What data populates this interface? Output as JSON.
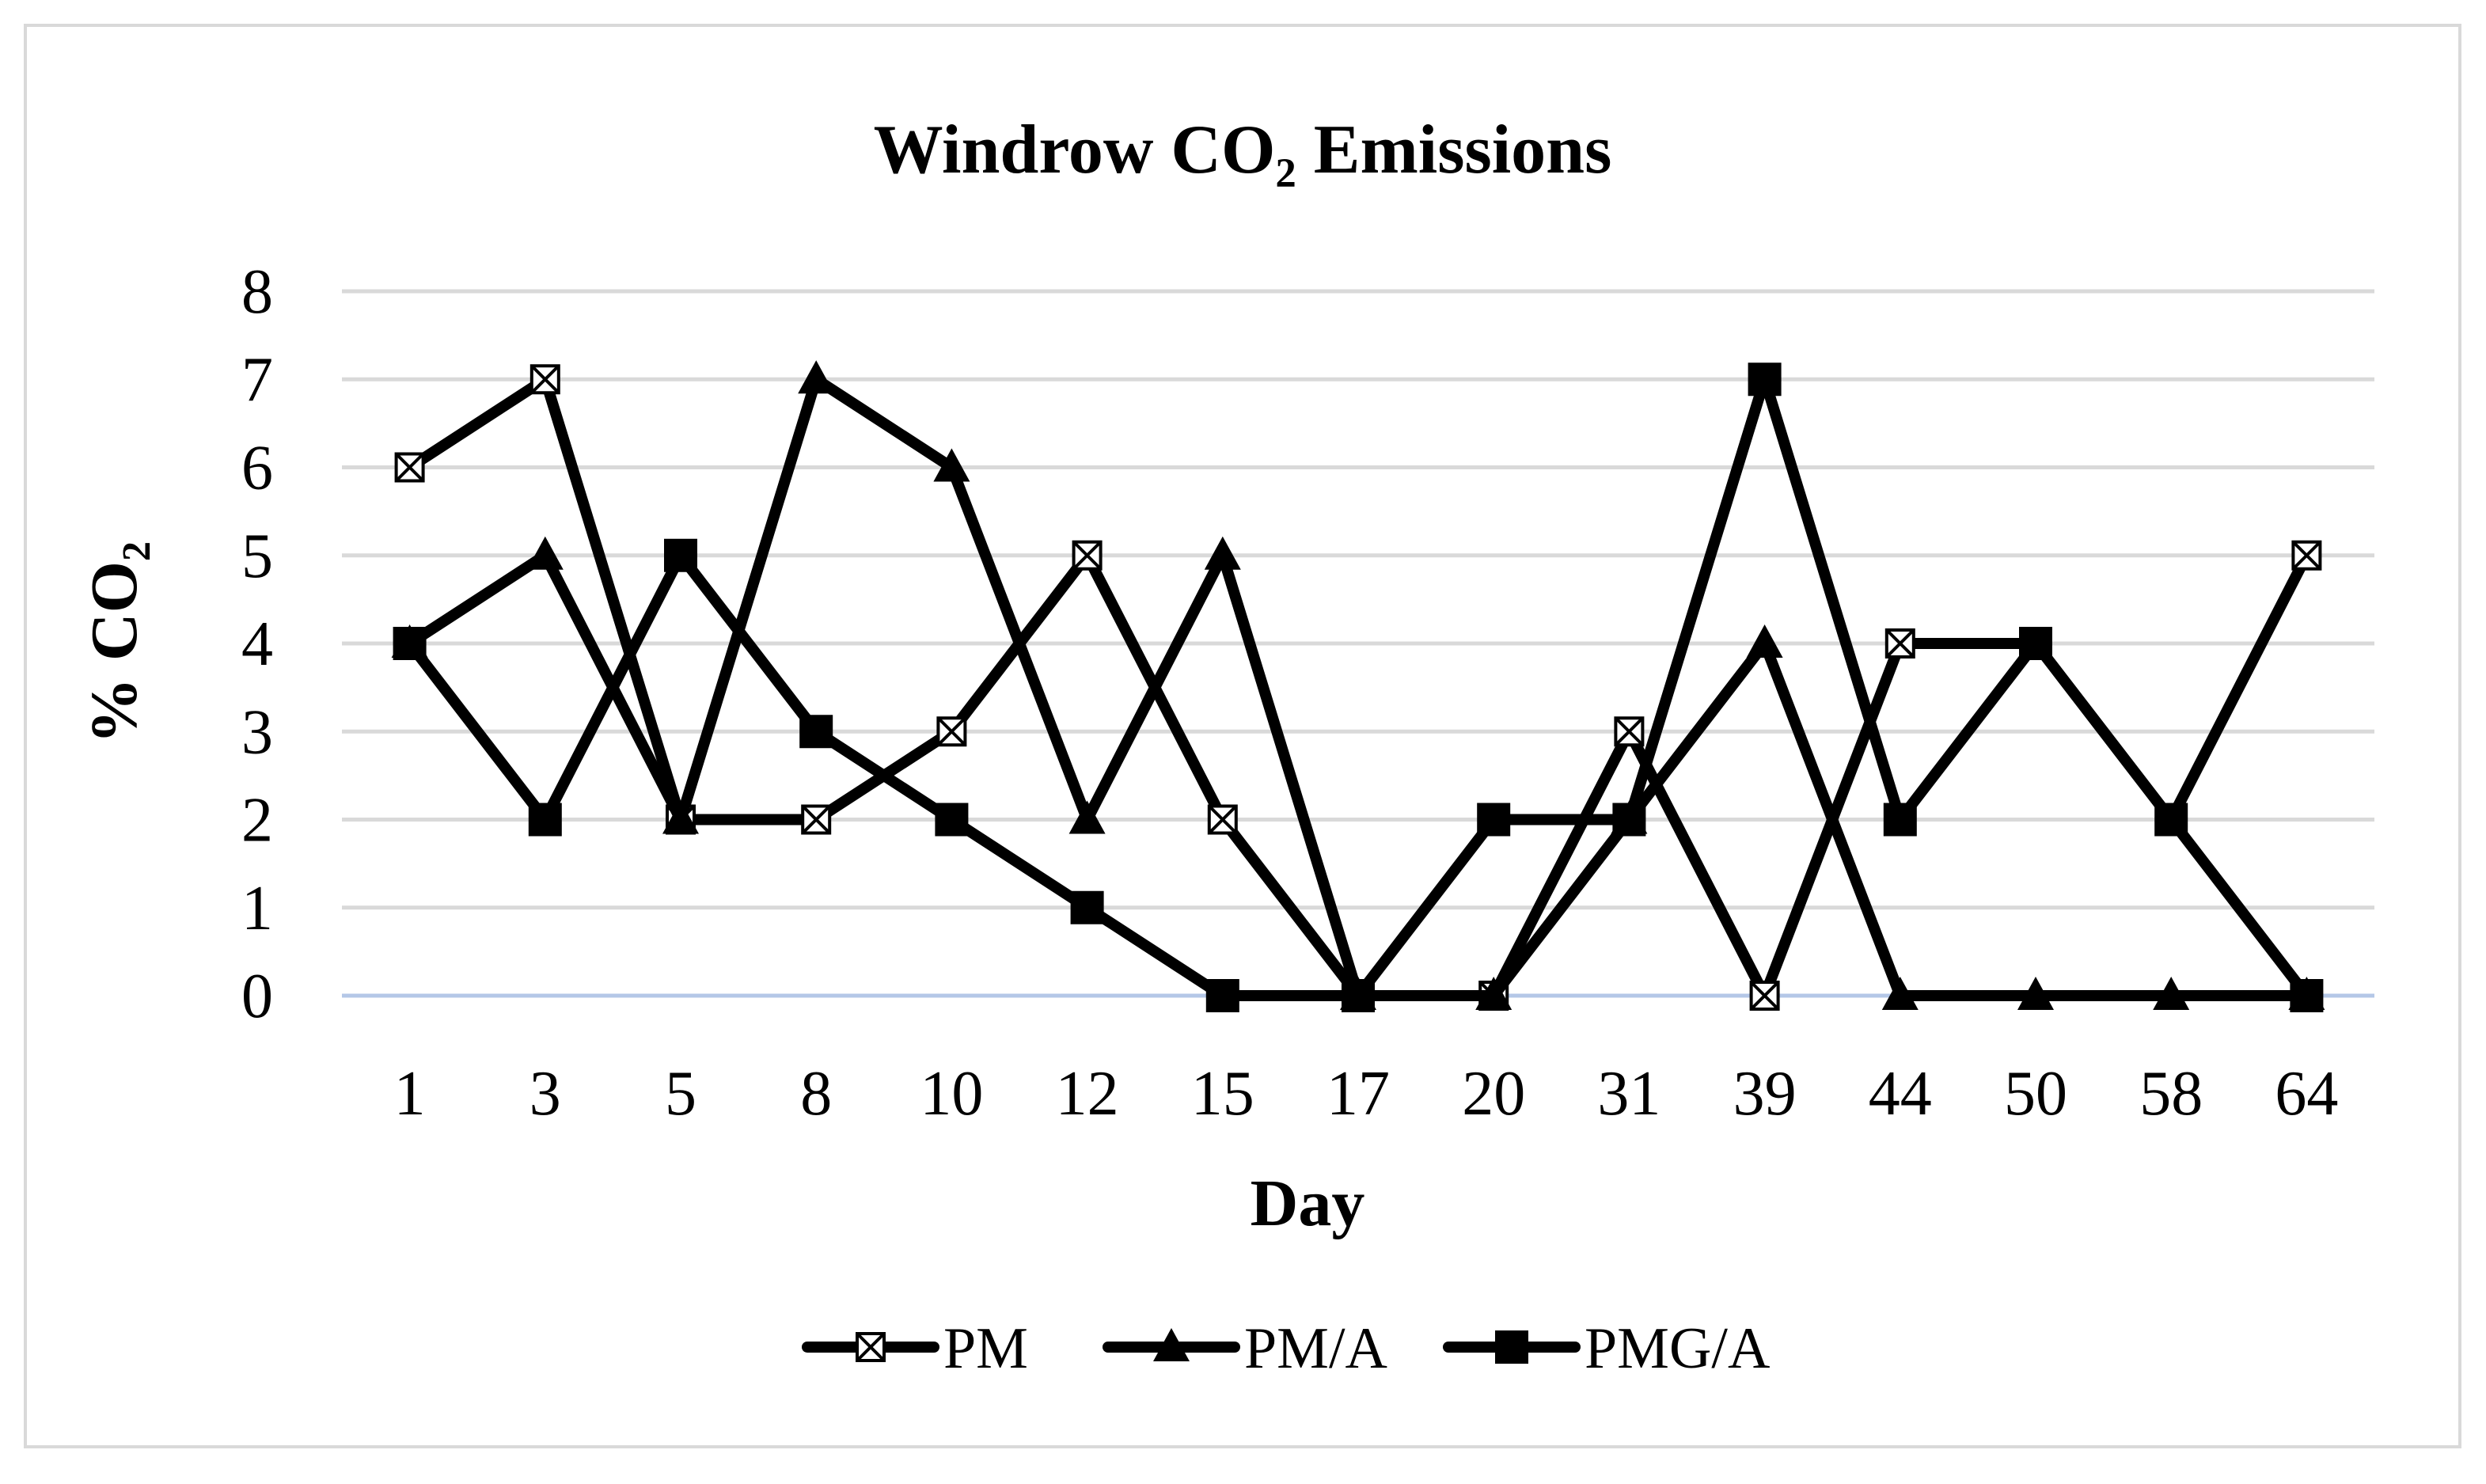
{
  "chart_data": {
    "type": "line",
    "title": "Windrow CO₂ Emissions",
    "xlabel": "Day",
    "ylabel": "% CO₂",
    "ylim": [
      0,
      8
    ],
    "yticks": [
      "0",
      "1",
      "2",
      "3",
      "4",
      "5",
      "6",
      "7",
      "8"
    ],
    "grid": true,
    "legend_position": "bottom",
    "categories": [
      "1",
      "3",
      "5",
      "8",
      "10",
      "12",
      "15",
      "17",
      "20",
      "31",
      "39",
      "44",
      "50",
      "58",
      "64"
    ],
    "series": [
      {
        "name": "PM",
        "marker": "x-square",
        "values": [
          6,
          7,
          2,
          2,
          3,
          5,
          2,
          0,
          0,
          3,
          0,
          4,
          4,
          2,
          5
        ]
      },
      {
        "name": "PM/A",
        "marker": "triangle",
        "values": [
          4,
          5,
          2,
          7,
          6,
          2,
          5,
          0,
          0,
          2,
          4,
          0,
          0,
          0,
          0
        ]
      },
      {
        "name": "PMG/A",
        "marker": "square",
        "values": [
          4,
          2,
          5,
          3,
          2,
          1,
          0,
          0,
          2,
          2,
          7,
          2,
          4,
          2,
          0
        ]
      }
    ],
    "colors": {
      "line": "#000000",
      "grid": "#d9d9d9",
      "baseline": "#b4c7e7",
      "frame": "#d9d9d9"
    }
  }
}
